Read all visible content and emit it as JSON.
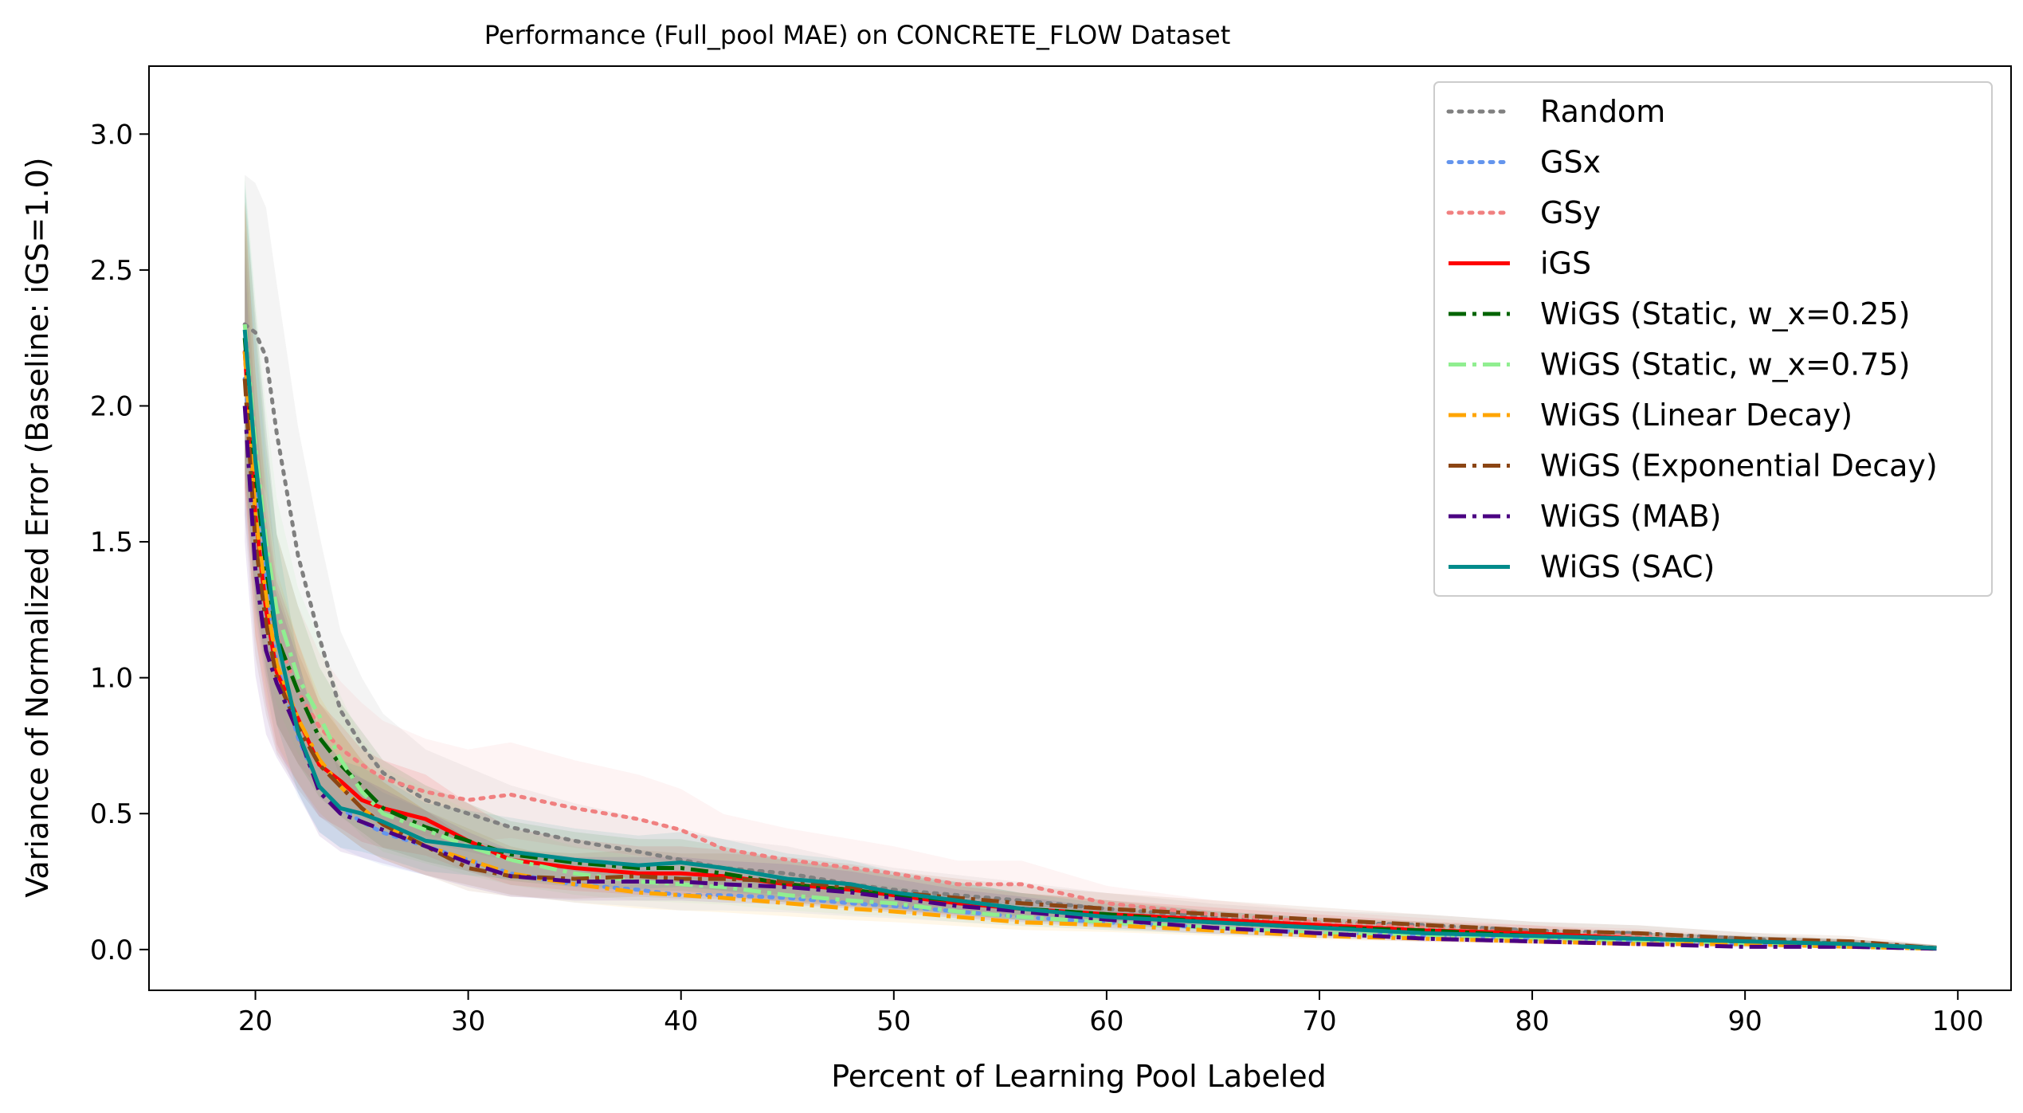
{
  "chart_data": {
    "type": "line",
    "title": "Performance (Full_pool MAE) on CONCRETE_FLOW Dataset",
    "xlabel": "Percent of Learning Pool Labeled",
    "ylabel": "Variance of Normalized Error (Baseline: iGS=1.0)",
    "xlim": [
      15,
      102.5
    ],
    "ylim": [
      -0.15,
      3.25
    ],
    "xticks": [
      20,
      30,
      40,
      50,
      60,
      70,
      80,
      90,
      100
    ],
    "yticks": [
      0.0,
      0.5,
      1.0,
      1.5,
      2.0,
      2.5,
      3.0
    ],
    "xtick_labels": [
      "20",
      "30",
      "40",
      "50",
      "60",
      "70",
      "80",
      "90",
      "100"
    ],
    "ytick_labels": [
      "0.0",
      "0.5",
      "1.0",
      "1.5",
      "2.0",
      "2.5",
      "3.0"
    ],
    "grid": false,
    "legend_position": "top-right",
    "x": [
      19.5,
      20,
      20.5,
      21,
      22,
      23,
      24,
      25,
      26,
      28,
      30,
      32,
      35,
      38,
      40,
      42,
      45,
      48,
      50,
      53,
      56,
      60,
      65,
      70,
      75,
      80,
      85,
      90,
      95,
      99
    ],
    "series": [
      {
        "name": "Random",
        "color": "#808080",
        "dash": "dotted",
        "values": [
          2.3,
          2.27,
          2.18,
          1.9,
          1.45,
          1.15,
          0.88,
          0.75,
          0.65,
          0.55,
          0.5,
          0.45,
          0.4,
          0.36,
          0.33,
          0.3,
          0.28,
          0.24,
          0.22,
          0.2,
          0.18,
          0.15,
          0.12,
          0.1,
          0.09,
          0.07,
          0.06,
          0.04,
          0.02,
          0.005
        ]
      },
      {
        "name": "GSx",
        "color": "#6495ED",
        "dash": "dotted",
        "values": [
          2.1,
          1.7,
          1.35,
          1.05,
          0.78,
          0.6,
          0.52,
          0.47,
          0.43,
          0.38,
          0.33,
          0.28,
          0.24,
          0.22,
          0.2,
          0.2,
          0.19,
          0.17,
          0.16,
          0.14,
          0.12,
          0.1,
          0.08,
          0.06,
          0.05,
          0.04,
          0.03,
          0.02,
          0.01,
          0.003
        ]
      },
      {
        "name": "GSy",
        "color": "#F08080",
        "dash": "dotted",
        "values": [
          2.2,
          1.8,
          1.45,
          1.15,
          0.95,
          0.82,
          0.74,
          0.68,
          0.63,
          0.58,
          0.55,
          0.57,
          0.52,
          0.48,
          0.44,
          0.37,
          0.33,
          0.3,
          0.28,
          0.24,
          0.24,
          0.17,
          0.13,
          0.1,
          0.08,
          0.06,
          0.05,
          0.03,
          0.02,
          0.005
        ]
      },
      {
        "name": "iGS",
        "color": "#FF0000",
        "dash": "solid",
        "values": [
          2.2,
          1.6,
          1.25,
          1.02,
          0.85,
          0.68,
          0.62,
          0.55,
          0.52,
          0.48,
          0.4,
          0.33,
          0.3,
          0.28,
          0.28,
          0.27,
          0.24,
          0.22,
          0.2,
          0.17,
          0.15,
          0.13,
          0.11,
          0.09,
          0.07,
          0.06,
          0.04,
          0.03,
          0.02,
          0.005
        ]
      },
      {
        "name": "WiGS (Static, w_x=0.25)",
        "color": "#006400",
        "dash": "dashdot",
        "values": [
          2.25,
          1.75,
          1.4,
          1.15,
          0.95,
          0.78,
          0.68,
          0.6,
          0.52,
          0.45,
          0.4,
          0.35,
          0.32,
          0.3,
          0.3,
          0.28,
          0.24,
          0.22,
          0.2,
          0.18,
          0.15,
          0.13,
          0.1,
          0.08,
          0.07,
          0.05,
          0.04,
          0.03,
          0.02,
          0.005
        ]
      },
      {
        "name": "WiGS (Static, w_x=0.75)",
        "color": "#90EE90",
        "dash": "dashdot",
        "values": [
          2.3,
          1.85,
          1.5,
          1.25,
          1.0,
          0.86,
          0.7,
          0.58,
          0.5,
          0.44,
          0.38,
          0.33,
          0.28,
          0.25,
          0.24,
          0.23,
          0.2,
          0.18,
          0.17,
          0.14,
          0.12,
          0.1,
          0.08,
          0.06,
          0.05,
          0.04,
          0.03,
          0.02,
          0.01,
          0.003
        ]
      },
      {
        "name": "WiGS (Linear Decay)",
        "color": "#FFA500",
        "dash": "dashdot",
        "values": [
          2.2,
          1.6,
          1.3,
          1.05,
          0.85,
          0.7,
          0.6,
          0.52,
          0.46,
          0.38,
          0.33,
          0.28,
          0.24,
          0.21,
          0.2,
          0.19,
          0.17,
          0.15,
          0.14,
          0.12,
          0.1,
          0.09,
          0.07,
          0.05,
          0.04,
          0.03,
          0.02,
          0.02,
          0.01,
          0.003
        ]
      },
      {
        "name": "WiGS (Exponential Decay)",
        "color": "#8B4513",
        "dash": "dashdot",
        "values": [
          2.1,
          1.5,
          1.2,
          1.0,
          0.82,
          0.68,
          0.6,
          0.52,
          0.46,
          0.38,
          0.3,
          0.27,
          0.26,
          0.27,
          0.26,
          0.26,
          0.25,
          0.23,
          0.21,
          0.19,
          0.17,
          0.15,
          0.13,
          0.11,
          0.09,
          0.07,
          0.06,
          0.04,
          0.03,
          0.005
        ]
      },
      {
        "name": "WiGS (MAB)",
        "color": "#4B0082",
        "dash": "dashdot",
        "values": [
          2.0,
          1.4,
          1.1,
          0.98,
          0.8,
          0.58,
          0.5,
          0.47,
          0.44,
          0.38,
          0.32,
          0.27,
          0.25,
          0.25,
          0.25,
          0.24,
          0.23,
          0.21,
          0.19,
          0.16,
          0.14,
          0.11,
          0.08,
          0.06,
          0.04,
          0.03,
          0.02,
          0.01,
          0.01,
          0.003
        ]
      },
      {
        "name": "WiGS (SAC)",
        "color": "#008B8B",
        "dash": "solid",
        "values": [
          2.28,
          1.8,
          1.45,
          1.15,
          0.8,
          0.6,
          0.52,
          0.5,
          0.47,
          0.4,
          0.38,
          0.36,
          0.33,
          0.31,
          0.32,
          0.3,
          0.26,
          0.24,
          0.21,
          0.18,
          0.15,
          0.12,
          0.1,
          0.08,
          0.06,
          0.05,
          0.04,
          0.03,
          0.02,
          0.005
        ]
      }
    ]
  }
}
